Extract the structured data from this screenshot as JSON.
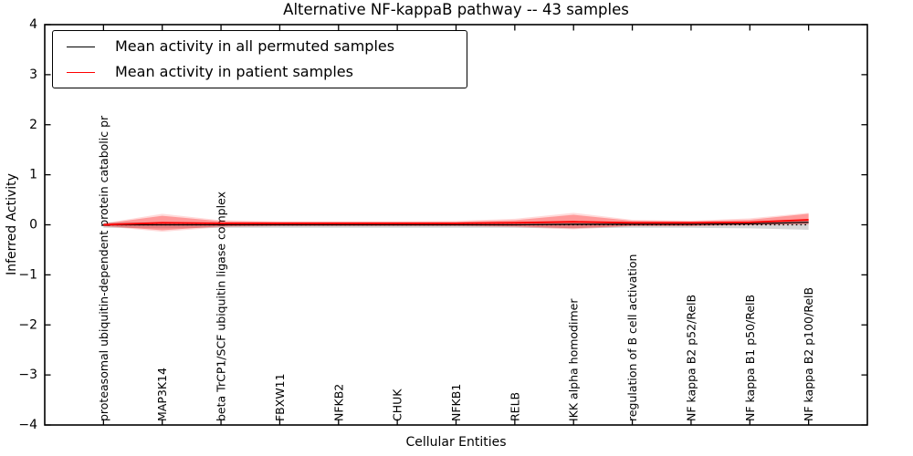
{
  "title": "Alternative NF-kappaB pathway -- 43 samples",
  "axes": {
    "ylabel": "Inferred Activity",
    "xlabel": "Cellular Entities",
    "yticks": [
      {
        "value": 4,
        "label": "4"
      },
      {
        "value": 3,
        "label": "3"
      },
      {
        "value": 2,
        "label": "2"
      },
      {
        "value": 1,
        "label": "1"
      },
      {
        "value": 0,
        "label": "0"
      },
      {
        "value": -1,
        "label": "−1"
      },
      {
        "value": -2,
        "label": "−2"
      },
      {
        "value": -3,
        "label": "−3"
      },
      {
        "value": -4,
        "label": "−4"
      }
    ]
  },
  "legend": {
    "entries": [
      {
        "label": "Mean activity in all permuted samples",
        "color": "#000000"
      },
      {
        "label": "Mean activity in patient samples",
        "color": "#ff0000"
      }
    ]
  },
  "chart_data": {
    "type": "line",
    "title": "Alternative NF-kappaB pathway -- 43 samples",
    "xlabel": "Cellular Entities",
    "ylabel": "Inferred Activity",
    "ylim": [
      -4,
      4
    ],
    "xlim": [
      -1,
      13
    ],
    "grid": false,
    "legend_position": "upper left",
    "zero_line_style": "dotted",
    "categories": [
      "proteasomal ubiquitin-dependent protein catabolic pr",
      "MAP3K14",
      "beta TrCP1/SCF ubiquitin ligase complex",
      "FBXW11",
      "NFKB2",
      "CHUK",
      "NFKB1",
      "RELB",
      "IKK alpha homodimer",
      "regulation of B cell activation",
      "NF kappa B2 p52/RelB",
      "NF kappa B1 p50/RelB",
      "NF kappa B2 p100/RelB"
    ],
    "series": [
      {
        "name": "Mean activity in all permuted samples",
        "color": "#000000",
        "values": [
          0.0,
          0.0,
          0.0,
          0.0,
          0.0,
          0.0,
          0.0,
          0.0,
          0.01,
          0.01,
          0.01,
          0.02,
          0.05
        ],
        "band_upper": [
          0.05,
          0.05,
          0.04,
          0.04,
          0.04,
          0.04,
          0.04,
          0.05,
          0.05,
          0.05,
          0.05,
          0.06,
          0.1
        ],
        "band_lower": [
          -0.06,
          -0.07,
          -0.06,
          -0.06,
          -0.06,
          -0.06,
          -0.06,
          -0.06,
          -0.07,
          -0.06,
          -0.06,
          -0.07,
          -0.1
        ]
      },
      {
        "name": "Mean activity in patient samples",
        "color": "#ff0000",
        "values": [
          0.0,
          0.04,
          0.03,
          0.03,
          0.03,
          0.03,
          0.03,
          0.04,
          0.06,
          0.04,
          0.04,
          0.05,
          0.1
        ],
        "band_upper": [
          0.02,
          0.18,
          0.07,
          0.06,
          0.06,
          0.06,
          0.06,
          0.09,
          0.2,
          0.08,
          0.07,
          0.1,
          0.22
        ],
        "band_lower": [
          -0.02,
          -0.11,
          -0.03,
          -0.02,
          -0.02,
          -0.02,
          -0.02,
          -0.03,
          -0.07,
          -0.02,
          -0.02,
          0.0,
          0.02
        ],
        "band_outer_upper": [
          0.03,
          0.22,
          0.09,
          0.07,
          0.07,
          0.07,
          0.08,
          0.12,
          0.24,
          0.1,
          0.08,
          0.13,
          0.24
        ],
        "band_outer_lower": [
          -0.03,
          -0.14,
          -0.05,
          -0.03,
          -0.03,
          -0.03,
          -0.03,
          -0.05,
          -0.09,
          -0.03,
          -0.03,
          -0.01,
          0.0
        ]
      }
    ]
  }
}
